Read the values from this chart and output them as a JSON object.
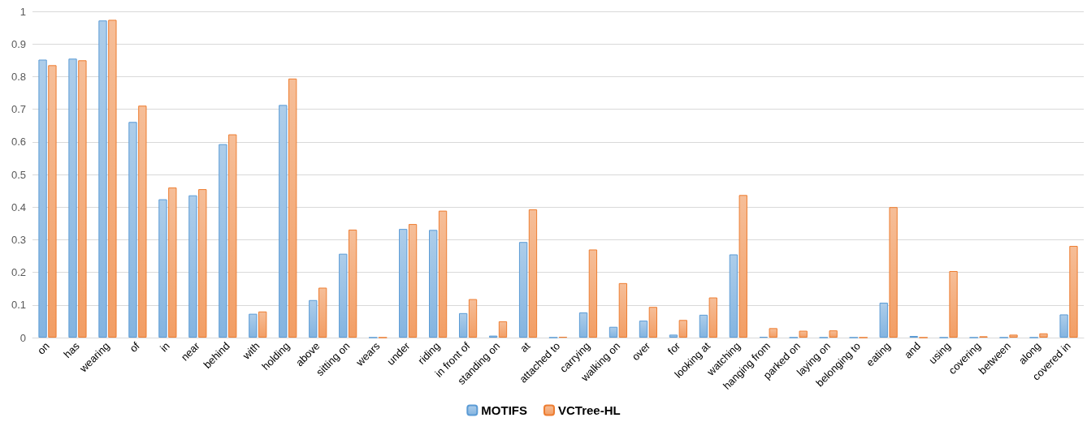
{
  "chart_data": {
    "type": "bar",
    "categories": [
      "on",
      "has",
      "wearing",
      "of",
      "in",
      "near",
      "behind",
      "with",
      "holding",
      "above",
      "sitting on",
      "wears",
      "under",
      "riding",
      "in front of",
      "standing on",
      "at",
      "attached to",
      "carrying",
      "walking on",
      "over",
      "for",
      "looking at",
      "watching",
      "hanging from",
      "parked on",
      "laying on",
      "belonging to",
      "eating",
      "and",
      "using",
      "covering",
      "between",
      "along",
      "covered in"
    ],
    "series": [
      {
        "name": "MOTIFS",
        "color": "#5b9bd5",
        "values": [
          0.852,
          0.855,
          0.972,
          0.661,
          0.424,
          0.436,
          0.593,
          0.073,
          0.713,
          0.115,
          0.257,
          0,
          0.333,
          0.33,
          0.075,
          0.006,
          0.293,
          0,
          0.077,
          0.033,
          0.052,
          0.009,
          0.07,
          0.255,
          0.002,
          0,
          0,
          0,
          0.107,
          0.005,
          0,
          0,
          0,
          0,
          0.071
        ]
      },
      {
        "name": "VCTree-HL",
        "color": "#ed7d31",
        "values": [
          0.835,
          0.85,
          0.974,
          0.711,
          0.46,
          0.455,
          0.623,
          0.08,
          0.794,
          0.153,
          0.331,
          0,
          0.348,
          0.389,
          0.118,
          0.05,
          0.393,
          0.002,
          0.27,
          0.167,
          0.094,
          0.054,
          0.123,
          0.437,
          0.029,
          0.021,
          0.022,
          0,
          0.4,
          0,
          0.204,
          0.004,
          0.009,
          0.013,
          0.281
        ]
      }
    ],
    "ylim": [
      0,
      1
    ],
    "yticks": [
      0,
      0.1,
      0.2,
      0.3,
      0.4,
      0.5,
      0.6,
      0.7,
      0.8,
      0.9,
      1
    ],
    "grid": "y",
    "legend": "bottom"
  }
}
